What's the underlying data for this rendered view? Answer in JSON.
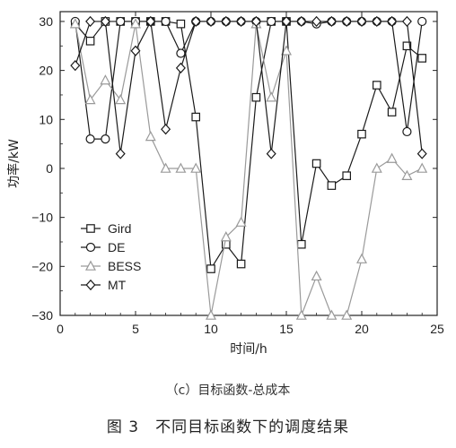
{
  "chart_data": {
    "type": "line",
    "xlabel": "时间/h",
    "ylabel": "功率/kW",
    "xlim": [
      0,
      25
    ],
    "ylim": [
      -30,
      32
    ],
    "xticks": [
      0,
      5,
      10,
      15,
      20,
      25
    ],
    "yticks": [
      -30,
      -20,
      -10,
      0,
      10,
      20,
      30
    ],
    "x": [
      1,
      2,
      3,
      4,
      5,
      6,
      7,
      8,
      9,
      10,
      11,
      12,
      13,
      14,
      15,
      16,
      17,
      18,
      19,
      20,
      21,
      22,
      23,
      24
    ],
    "series": [
      {
        "name": "Gird",
        "marker": "square",
        "color": "#1a1a1a",
        "values": [
          29.5,
          26,
          30,
          30,
          30,
          30,
          30,
          29.5,
          10.5,
          -20.5,
          -15.5,
          -19.5,
          14.5,
          30,
          30,
          -15.5,
          1,
          -3.5,
          -1.5,
          7,
          17,
          11.5,
          25,
          22.5
        ]
      },
      {
        "name": "DE",
        "marker": "circle",
        "color": "#1a1a1a",
        "values": [
          30,
          6,
          6,
          30,
          30,
          30,
          30,
          23.5,
          30,
          30,
          30,
          30,
          30,
          30,
          30,
          30,
          29.5,
          30,
          30,
          30,
          30,
          30,
          7.5,
          30
        ]
      },
      {
        "name": "BESS",
        "marker": "triangle",
        "color": "#9a9a9a",
        "values": [
          29.5,
          14,
          18,
          14,
          29.5,
          6.5,
          0,
          0,
          0,
          -30,
          -14,
          -11,
          29.5,
          14.5,
          24,
          -30,
          -22,
          -30,
          -30,
          -18.5,
          0,
          2,
          -1.5,
          0
        ]
      },
      {
        "name": "MT",
        "marker": "diamond",
        "color": "#1a1a1a",
        "values": [
          21,
          30,
          30,
          3,
          24,
          30,
          8,
          20.5,
          30,
          30,
          30,
          30,
          30,
          3,
          30,
          30,
          30,
          30,
          30,
          30,
          30,
          30,
          30,
          3
        ]
      }
    ],
    "legend_position": "lower-left",
    "grid": false
  },
  "captions": {
    "subfigure": "（c）目标函数-总成本",
    "figure": "图 3　不同目标函数下的调度结果"
  }
}
